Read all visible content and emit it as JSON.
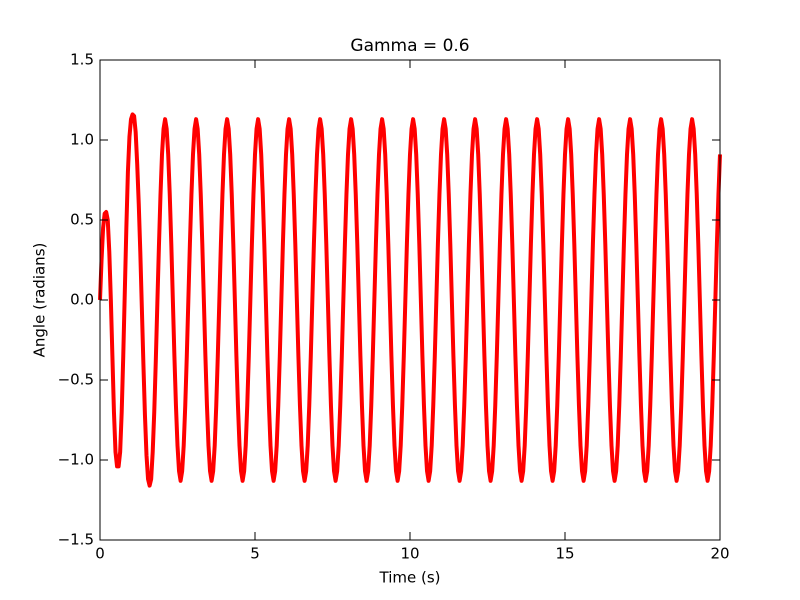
{
  "chart_data": {
    "type": "line",
    "title": "Gamma = 0.6",
    "x_label": "Time (s)",
    "y_label": "Angle (radians)",
    "xlim": [
      0,
      20
    ],
    "ylim": [
      -1.5,
      1.5
    ],
    "xticks": [
      0,
      5,
      10,
      15,
      20
    ],
    "yticks": [
      {
        "value": -1.5,
        "label": "−1.5"
      },
      {
        "value": -1.0,
        "label": "−1.0"
      },
      {
        "value": -0.5,
        "label": "−0.5"
      },
      {
        "value": 0.0,
        "label": "0.0"
      },
      {
        "value": 0.5,
        "label": "0.5"
      },
      {
        "value": 1.0,
        "label": "1.0"
      },
      {
        "value": 1.5,
        "label": "1.5"
      }
    ],
    "grid": false,
    "x": [
      0,
      0.05,
      0.1,
      0.15,
      0.2,
      0.25,
      0.3,
      0.35,
      0.4,
      0.45,
      0.5,
      0.55,
      0.6,
      0.65,
      0.7,
      0.75,
      0.8,
      0.85,
      0.9,
      0.95,
      1,
      1.05,
      1.1,
      1.15,
      1.2,
      1.25,
      1.3,
      1.35,
      1.4,
      1.45,
      1.5,
      1.55,
      1.6,
      1.65,
      1.7,
      1.75,
      1.8,
      1.85,
      1.9,
      1.95,
      2,
      2.05,
      2.1,
      2.15,
      2.2,
      2.25,
      2.3,
      2.35,
      2.4,
      2.45,
      2.5,
      2.55,
      2.6,
      2.65,
      2.7,
      2.75,
      2.8,
      2.85,
      2.9,
      2.95,
      3,
      3.05,
      3.1,
      3.15,
      3.2,
      3.25,
      3.3,
      3.35,
      3.4,
      3.45,
      3.5,
      3.55,
      3.6,
      3.65,
      3.7,
      3.75,
      3.8,
      3.85,
      3.9,
      3.95,
      4,
      4.05,
      4.1,
      4.15,
      4.2,
      4.25,
      4.3,
      4.35,
      4.4,
      4.45,
      4.5,
      4.55,
      4.6,
      4.65,
      4.7,
      4.75,
      4.8,
      4.85,
      4.9,
      4.95,
      5,
      5.05,
      5.1,
      5.15,
      5.2,
      5.25,
      5.3,
      5.35,
      5.4,
      5.45,
      5.5,
      5.55,
      5.6,
      5.65,
      5.7,
      5.75,
      5.8,
      5.85,
      5.9,
      5.95,
      6,
      6.05,
      6.1,
      6.15,
      6.2,
      6.25,
      6.3,
      6.35,
      6.4,
      6.45,
      6.5,
      6.55,
      6.6,
      6.65,
      6.7,
      6.75,
      6.8,
      6.85,
      6.9,
      6.95,
      7,
      7.05,
      7.1,
      7.15,
      7.2,
      7.25,
      7.3,
      7.35,
      7.4,
      7.45,
      7.5,
      7.55,
      7.6,
      7.65,
      7.7,
      7.75,
      7.8,
      7.85,
      7.9,
      7.95,
      8,
      8.05,
      8.1,
      8.15,
      8.2,
      8.25,
      8.3,
      8.35,
      8.4,
      8.45,
      8.5,
      8.55,
      8.6,
      8.65,
      8.7,
      8.75,
      8.8,
      8.85,
      8.9,
      8.95,
      9,
      9.05,
      9.1,
      9.15,
      9.2,
      9.25,
      9.3,
      9.35,
      9.4,
      9.45,
      9.5,
      9.55,
      9.6,
      9.65,
      9.7,
      9.75,
      9.8,
      9.85,
      9.9,
      9.95,
      10,
      10.05,
      10.1,
      10.15,
      10.2,
      10.25,
      10.3,
      10.35,
      10.4,
      10.45,
      10.5,
      10.55,
      10.6,
      10.65,
      10.7,
      10.75,
      10.8,
      10.85,
      10.9,
      10.95,
      11,
      11.05,
      11.1,
      11.15,
      11.2,
      11.25,
      11.3,
      11.35,
      11.4,
      11.45,
      11.5,
      11.55,
      11.6,
      11.65,
      11.7,
      11.75,
      11.8,
      11.85,
      11.9,
      11.95,
      12,
      12.05,
      12.1,
      12.15,
      12.2,
      12.25,
      12.3,
      12.35,
      12.4,
      12.45,
      12.5,
      12.55,
      12.6,
      12.65,
      12.7,
      12.75,
      12.8,
      12.85,
      12.9,
      12.95,
      13,
      13.05,
      13.1,
      13.15,
      13.2,
      13.25,
      13.3,
      13.35,
      13.4,
      13.45,
      13.5,
      13.55,
      13.6,
      13.65,
      13.7,
      13.75,
      13.8,
      13.85,
      13.9,
      13.95,
      14,
      14.05,
      14.1,
      14.15,
      14.2,
      14.25,
      14.3,
      14.35,
      14.4,
      14.45,
      14.5,
      14.55,
      14.6,
      14.65,
      14.7,
      14.75,
      14.8,
      14.85,
      14.9,
      14.95,
      15,
      15.05,
      15.1,
      15.15,
      15.2,
      15.25,
      15.3,
      15.35,
      15.4,
      15.45,
      15.5,
      15.55,
      15.6,
      15.65,
      15.7,
      15.75,
      15.8,
      15.85,
      15.9,
      15.95,
      16,
      16.05,
      16.1,
      16.15,
      16.2,
      16.25,
      16.3,
      16.35,
      16.4,
      16.45,
      16.5,
      16.55,
      16.6,
      16.65,
      16.7,
      16.75,
      16.8,
      16.85,
      16.9,
      16.95,
      17,
      17.05,
      17.1,
      17.15,
      17.2,
      17.25,
      17.3,
      17.35,
      17.4,
      17.45,
      17.5,
      17.55,
      17.6,
      17.65,
      17.7,
      17.75,
      17.8,
      17.85,
      17.9,
      17.95,
      18,
      18.05,
      18.1,
      18.15,
      18.2,
      18.25,
      18.3,
      18.35,
      18.4,
      18.45,
      18.5,
      18.55,
      18.6,
      18.65,
      18.7,
      18.75,
      18.8,
      18.85,
      18.9,
      18.95,
      19,
      19.05,
      19.1,
      19.15,
      19.2,
      19.25,
      19.3,
      19.35,
      19.4,
      19.45,
      19.5,
      19.55,
      19.6,
      19.65,
      19.7,
      19.75,
      19.8,
      19.85,
      19.9,
      19.95,
      20
    ],
    "series": [
      {
        "color": "#ff0000",
        "values": [
          0,
          0.25,
          0.45,
          0.54,
          0.55,
          0.5,
          0.3,
          0,
          -0.35,
          -0.7,
          -0.95,
          -1.04,
          -1.04,
          -0.95,
          -0.7,
          -0.35,
          0.05,
          0.45,
          0.8,
          1.02,
          1.13,
          1.16,
          1.15,
          1.05,
          0.85,
          0.6,
          0.3,
          -0.05,
          -0.4,
          -0.72,
          -0.97,
          -1.12,
          -1.16,
          -1.12,
          -0.95,
          -0.7,
          -0.38,
          -0.02,
          0.33,
          0.65,
          0.91,
          1.07,
          1.13,
          1.07,
          0.91,
          0.66,
          0.35,
          0,
          -0.35,
          -0.66,
          -0.91,
          -1.07,
          -1.13,
          -1.07,
          -0.91,
          -0.66,
          -0.35,
          0,
          0.35,
          0.66,
          0.91,
          1.07,
          1.13,
          1.07,
          0.91,
          0.66,
          0.35,
          0,
          -0.35,
          -0.66,
          -0.91,
          -1.07,
          -1.13,
          -1.07,
          -0.91,
          -0.66,
          -0.35,
          0,
          0.35,
          0.66,
          0.91,
          1.07,
          1.13,
          1.07,
          0.91,
          0.66,
          0.35,
          0,
          -0.35,
          -0.66,
          -0.91,
          -1.07,
          -1.13,
          -1.07,
          -0.91,
          -0.66,
          -0.35,
          0,
          0.35,
          0.66,
          0.91,
          1.07,
          1.13,
          1.07,
          0.91,
          0.66,
          0.35,
          0,
          -0.35,
          -0.66,
          -0.91,
          -1.07,
          -1.13,
          -1.07,
          -0.91,
          -0.66,
          -0.35,
          0,
          0.35,
          0.66,
          0.91,
          1.07,
          1.13,
          1.07,
          0.91,
          0.66,
          0.35,
          0,
          -0.35,
          -0.66,
          -0.91,
          -1.07,
          -1.13,
          -1.07,
          -0.91,
          -0.66,
          -0.35,
          0,
          0.35,
          0.66,
          0.91,
          1.07,
          1.13,
          1.07,
          0.91,
          0.66,
          0.35,
          0,
          -0.35,
          -0.66,
          -0.91,
          -1.07,
          -1.13,
          -1.07,
          -0.91,
          -0.66,
          -0.35,
          0,
          0.35,
          0.66,
          0.91,
          1.07,
          1.13,
          1.07,
          0.91,
          0.66,
          0.35,
          0,
          -0.35,
          -0.66,
          -0.91,
          -1.07,
          -1.13,
          -1.07,
          -0.91,
          -0.66,
          -0.35,
          0,
          0.35,
          0.66,
          0.91,
          1.07,
          1.13,
          1.07,
          0.91,
          0.66,
          0.35,
          0,
          -0.35,
          -0.66,
          -0.91,
          -1.07,
          -1.13,
          -1.07,
          -0.91,
          -0.66,
          -0.35,
          0,
          0.35,
          0.66,
          0.91,
          1.07,
          1.13,
          1.07,
          0.91,
          0.66,
          0.35,
          0,
          -0.35,
          -0.66,
          -0.91,
          -1.07,
          -1.13,
          -1.07,
          -0.91,
          -0.66,
          -0.35,
          0,
          0.35,
          0.66,
          0.91,
          1.07,
          1.13,
          1.07,
          0.91,
          0.66,
          0.35,
          0,
          -0.35,
          -0.66,
          -0.91,
          -1.07,
          -1.13,
          -1.07,
          -0.91,
          -0.66,
          -0.35,
          0,
          0.35,
          0.66,
          0.91,
          1.07,
          1.13,
          1.07,
          0.91,
          0.66,
          0.35,
          0,
          -0.35,
          -0.66,
          -0.91,
          -1.07,
          -1.13,
          -1.07,
          -0.91,
          -0.66,
          -0.35,
          0,
          0.35,
          0.66,
          0.91,
          1.07,
          1.13,
          1.07,
          0.91,
          0.66,
          0.35,
          0,
          -0.35,
          -0.66,
          -0.91,
          -1.07,
          -1.13,
          -1.07,
          -0.91,
          -0.66,
          -0.35,
          0,
          0.35,
          0.66,
          0.91,
          1.07,
          1.13,
          1.07,
          0.91,
          0.66,
          0.35,
          0,
          -0.35,
          -0.66,
          -0.91,
          -1.07,
          -1.13,
          -1.07,
          -0.91,
          -0.66,
          -0.35,
          0,
          0.35,
          0.66,
          0.91,
          1.07,
          1.13,
          1.07,
          0.91,
          0.66,
          0.35,
          0,
          -0.35,
          -0.66,
          -0.91,
          -1.07,
          -1.13,
          -1.07,
          -0.91,
          -0.66,
          -0.35,
          0,
          0.35,
          0.66,
          0.91,
          1.07,
          1.13,
          1.07,
          0.91,
          0.66,
          0.35,
          0,
          -0.35,
          -0.66,
          -0.91,
          -1.07,
          -1.13,
          -1.07,
          -0.91,
          -0.66,
          -0.35,
          0,
          0.35,
          0.66,
          0.91,
          1.07,
          1.13,
          1.07,
          0.91,
          0.66,
          0.35,
          0,
          -0.35,
          -0.66,
          -0.91,
          -1.07,
          -1.13,
          -1.07,
          -0.91,
          -0.66,
          -0.35,
          0,
          0.35,
          0.66,
          0.91,
          1.07,
          1.13,
          1.07,
          0.91,
          0.66,
          0.35,
          0,
          -0.35,
          -0.66,
          -0.91,
          -1.07,
          -1.13,
          -1.07,
          -0.91,
          -0.66,
          -0.35,
          0,
          0.35,
          0.66,
          0.91,
          1.07,
          1.13,
          1.07,
          0.91,
          0.66,
          0.35,
          0,
          -0.35,
          -0.66,
          -0.91,
          -1.07,
          -1.13,
          -1.07,
          -0.91,
          -0.66,
          -0.35,
          0,
          0.35,
          0.66,
          0.91
        ]
      }
    ]
  }
}
